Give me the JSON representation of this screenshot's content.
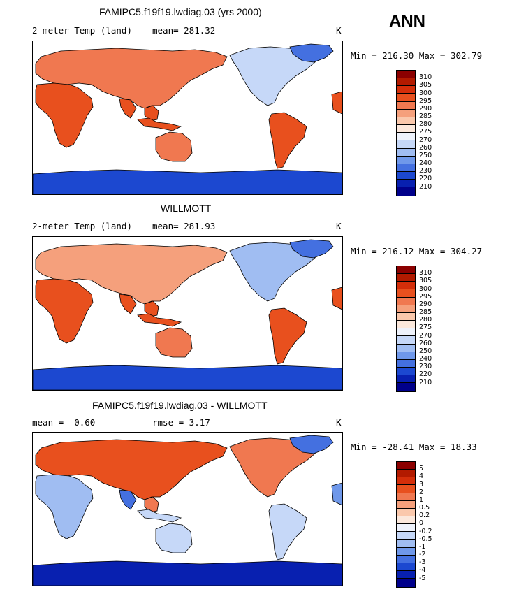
{
  "season": "ANN",
  "panels": [
    {
      "title": "FAMIPC5.f19f19.lwdiag.03 (yrs 2000)",
      "variable": "2-meter Temp (land)",
      "stat1": "mean= 281.32",
      "units": "K",
      "minmax": "Min = 216.30 Max = 302.79",
      "field": "model"
    },
    {
      "title": "WILLMOTT",
      "variable": "2-meter Temp (land)",
      "stat1": "mean= 281.93",
      "units": "K",
      "minmax": "Min = 216.12 Max = 304.27",
      "field": "obs"
    },
    {
      "title": "FAMIPC5.f19f19.lwdiag.03 - WILLMOTT",
      "stat_mean": "mean =   -0.60",
      "stat_rmse": "rmse =    3.17",
      "units": "K",
      "minmax": "Min = -28.41 Max =  18.33",
      "field": "diff"
    }
  ],
  "temp_colorbar": {
    "levels": [
      "310",
      "305",
      "300",
      "295",
      "290",
      "285",
      "280",
      "275",
      "270",
      "260",
      "250",
      "240",
      "230",
      "220",
      "210"
    ],
    "colors": [
      "#8b0000",
      "#b21a00",
      "#d42e0a",
      "#e8501e",
      "#f07850",
      "#f5a07c",
      "#fac8ac",
      "#fbe8dc",
      "#eef2fb",
      "#c6d8f8",
      "#a0bdf2",
      "#6f98ea",
      "#4470e0",
      "#1c48d0",
      "#0820b0",
      "#00008b"
    ]
  },
  "diff_colorbar": {
    "levels": [
      "5",
      "4",
      "3",
      "2",
      "1",
      "0.5",
      "0.2",
      "0",
      "-0.2",
      "-0.5",
      "-1",
      "-2",
      "-3",
      "-4",
      "-5"
    ],
    "colors": [
      "#8b0000",
      "#b21a00",
      "#d42e0a",
      "#e8501e",
      "#f07850",
      "#f5a07c",
      "#fac8ac",
      "#fbe8dc",
      "#eef2fb",
      "#c6d8f8",
      "#a0bdf2",
      "#6f98ea",
      "#4470e0",
      "#1c48d0",
      "#0820b0",
      "#00008b"
    ]
  }
}
